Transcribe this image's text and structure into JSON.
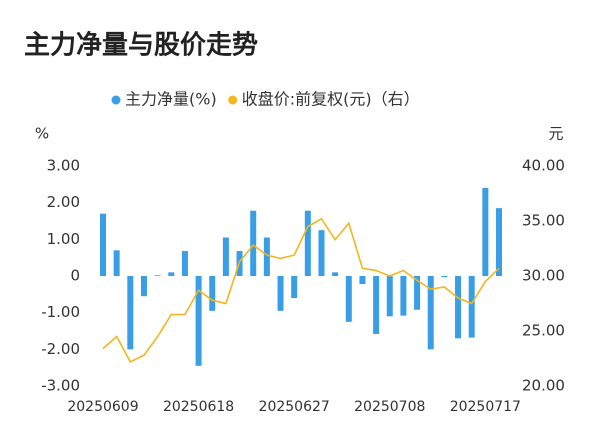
{
  "chart_data": {
    "type": "bar_line",
    "title": "主力净量与股价走势",
    "y_unit": "%",
    "y2_unit": "元",
    "categories": [
      "20250609",
      null,
      null,
      null,
      null,
      null,
      null,
      "20250618",
      null,
      null,
      null,
      null,
      null,
      null,
      "20250627",
      null,
      null,
      null,
      null,
      null,
      null,
      "20250708",
      null,
      null,
      null,
      null,
      null,
      null,
      "20250717",
      null
    ],
    "series": [
      {
        "name": "主力净量(%)",
        "type": "bar",
        "color": "#3a9ee6",
        "values": [
          1.7,
          0.7,
          -2.0,
          -0.55,
          0.02,
          0.1,
          0.68,
          -2.45,
          -0.95,
          1.05,
          0.68,
          1.78,
          1.05,
          -0.95,
          -0.6,
          1.78,
          1.25,
          0.1,
          -1.25,
          -0.22,
          -1.58,
          -1.1,
          -1.08,
          -0.92,
          -2.0,
          -0.03,
          -1.7,
          -1.68,
          2.4,
          1.85
        ]
      },
      {
        "name": "收盘价:前复权(元)（右）",
        "type": "line",
        "axis": "y2",
        "color": "#f5b51c",
        "values": [
          23.4,
          24.5,
          22.2,
          22.8,
          24.5,
          26.5,
          26.5,
          28.7,
          27.8,
          27.5,
          31.3,
          32.8,
          31.9,
          31.6,
          31.9,
          34.5,
          35.2,
          33.3,
          34.8,
          30.7,
          30.5,
          30.0,
          30.5,
          29.6,
          28.8,
          29.0,
          28.0,
          27.5,
          29.5,
          30.7
        ]
      }
    ],
    "ylim": [
      -3,
      3
    ],
    "yticks": [
      {
        "value": -3,
        "label": "-3.00"
      },
      {
        "value": -2,
        "label": "-2.00"
      },
      {
        "value": -1,
        "label": "-1.00"
      },
      0,
      {
        "value": 1,
        "label": "1.00"
      },
      {
        "value": 2,
        "label": "2.00"
      },
      {
        "value": 3,
        "label": "3.00"
      }
    ],
    "y2lim": [
      20,
      40
    ],
    "y2ticks": [
      {
        "value": 20,
        "label": "20.00"
      },
      {
        "value": 25,
        "label": "25.00"
      },
      {
        "value": 30,
        "label": "30.00"
      },
      {
        "value": 35,
        "label": "35.00"
      },
      {
        "value": 40,
        "label": "40.00"
      }
    ],
    "legend": "top"
  }
}
